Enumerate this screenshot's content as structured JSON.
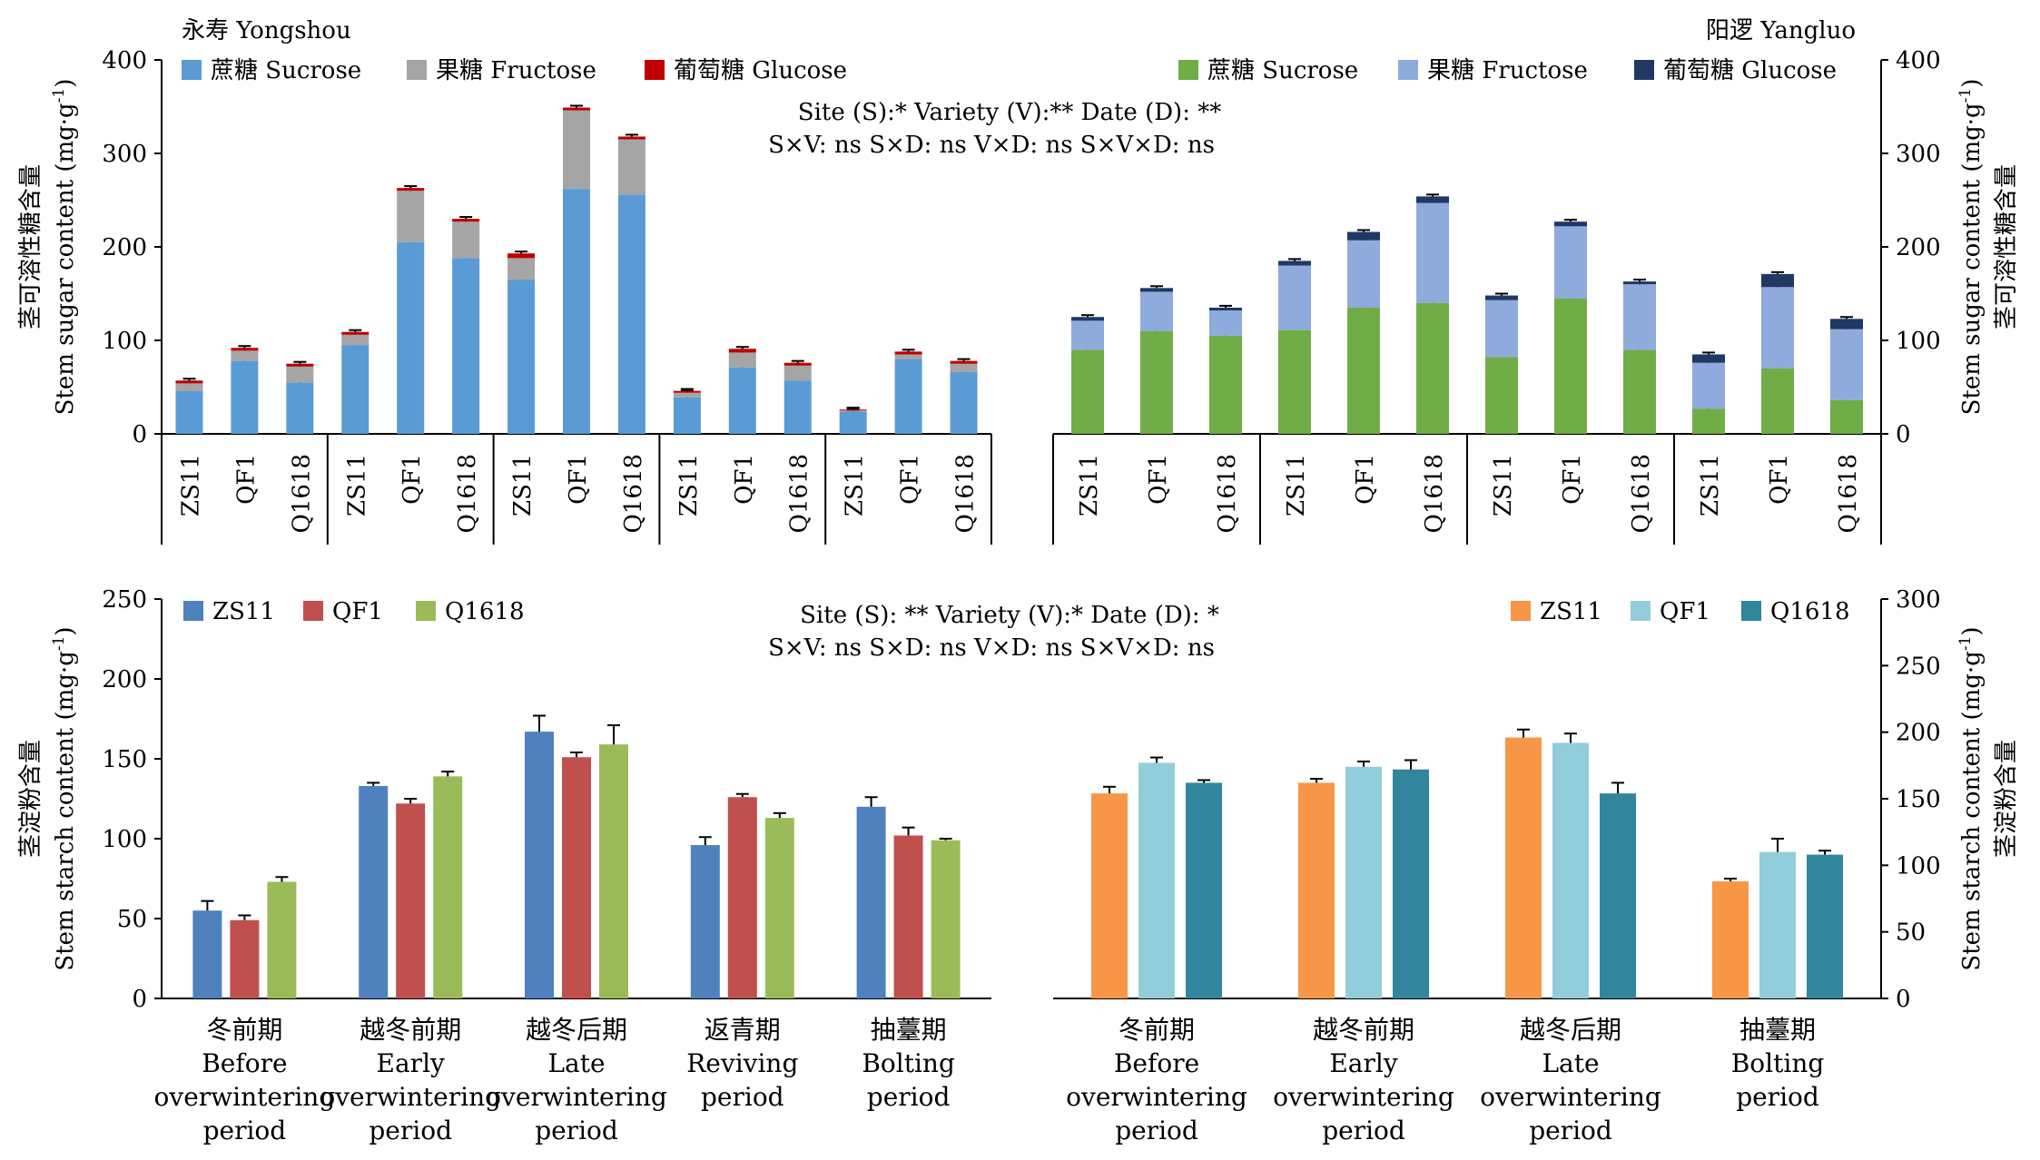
{
  "chart_data": [
    {
      "type": "bar",
      "stacked": true,
      "title": "永寿 Yongshou",
      "ylabel": "茎可溶性糖含量 Stem sugar content (mg·g-1)",
      "ylim": [
        0,
        400
      ],
      "yticks": [
        0,
        100,
        200,
        300,
        400
      ],
      "grid": false,
      "legend": "top-left",
      "legend_entries": [
        "蔗糖 Sucrose",
        "果糖 Fructose",
        "葡萄糖 Glucose"
      ],
      "colors": [
        "#5b9bd5",
        "#a5a5a5",
        "#c00000"
      ],
      "stats_lines": [
        "Site (S):* Variety (V):** Date (D): **",
        "S×V: ns S×D: ns V×D: ns S×V×D: ns"
      ],
      "groups": 5,
      "categories": [
        "ZS11",
        "QF1",
        "Q1618",
        "ZS11",
        "QF1",
        "Q1618",
        "ZS11",
        "QF1",
        "Q1618",
        "ZS11",
        "QF1",
        "Q1618",
        "ZS11",
        "QF1",
        "Q1618"
      ],
      "series": [
        {
          "name": "蔗糖 Sucrose",
          "values": [
            46,
            78,
            55,
            95,
            205,
            188,
            165,
            262,
            256,
            39,
            71,
            57,
            24,
            80,
            66
          ],
          "errors": [
            4,
            6,
            10,
            4,
            10,
            15,
            20,
            8,
            23,
            3,
            10,
            3,
            1,
            3,
            3
          ]
        },
        {
          "name": "果糖 Fructose",
          "values": [
            8,
            11,
            17,
            11,
            55,
            39,
            23,
            84,
            59,
            5,
            16,
            16,
            1,
            5,
            9
          ]
        },
        {
          "name": "葡萄糖 Glucose",
          "values": [
            3,
            3,
            3,
            3,
            3,
            3,
            5,
            3,
            3,
            2,
            4,
            3,
            1,
            3,
            3
          ]
        }
      ]
    },
    {
      "type": "bar",
      "stacked": true,
      "title": "阳逻 Yangluo",
      "ylabel": "茎可溶性糖含量 Stem sugar content (mg·g-1)",
      "ylim": [
        0,
        400
      ],
      "yticks": [
        0,
        100,
        200,
        300,
        400
      ],
      "grid": false,
      "legend": "top-right",
      "legend_entries": [
        "蔗糖 Sucrose",
        "果糖 Fructose",
        "葡萄糖 Glucose"
      ],
      "colors": [
        "#70ad47",
        "#8faadc",
        "#203864"
      ],
      "groups": 4,
      "categories": [
        "ZS11",
        "QF1",
        "Q1618",
        "ZS11",
        "QF1",
        "Q1618",
        "ZS11",
        "QF1",
        "Q1618",
        "ZS11",
        "QF1",
        "Q1618"
      ],
      "series": [
        {
          "name": "蔗糖 Sucrose",
          "values": [
            90,
            110,
            105,
            111,
            135,
            140,
            82,
            145,
            90,
            27,
            70,
            36
          ],
          "errors": [
            5,
            3,
            3,
            3,
            3,
            15,
            10,
            5,
            5,
            3,
            3,
            9
          ]
        },
        {
          "name": "果糖 Fructose",
          "values": [
            31,
            42,
            27,
            69,
            72,
            107,
            61,
            77,
            70,
            49,
            87,
            76
          ]
        },
        {
          "name": "葡萄糖 Glucose",
          "values": [
            4,
            4,
            3,
            5,
            9,
            7,
            5,
            5,
            3,
            9,
            14,
            11
          ]
        }
      ]
    },
    {
      "type": "bar",
      "ylabel": "茎淀粉含量 Stem starch content (mg·g-1)",
      "ylim": [
        0,
        250
      ],
      "yticks": [
        0,
        50,
        100,
        150,
        200,
        250
      ],
      "grid": false,
      "legend": "top-left",
      "stats_lines": [
        "Site (S): ** Variety (V):* Date (D): *",
        "S×V: ns S×D: ns V×D: ns S×V×D: ns"
      ],
      "categories": [
        [
          "冬前期",
          "Before",
          "overwintering",
          "period"
        ],
        [
          "越冬前期",
          "Early",
          "overwintering",
          "period"
        ],
        [
          "越冬后期",
          "Late",
          "overwintering",
          "period"
        ],
        [
          "返青期",
          "Reviving",
          "period"
        ],
        [
          "抽薹期",
          "Bolting",
          "period"
        ]
      ],
      "series": [
        {
          "name": "ZS11",
          "color": "#4f81bd",
          "values": [
            55,
            133,
            167,
            96,
            120
          ],
          "errors": [
            6,
            2,
            10,
            5,
            6
          ]
        },
        {
          "name": "QF1",
          "color": "#c0504d",
          "values": [
            49,
            122,
            151,
            126,
            102
          ],
          "errors": [
            3,
            3,
            3,
            2,
            5
          ]
        },
        {
          "name": "Q1618",
          "color": "#9bbb59",
          "values": [
            73,
            139,
            159,
            113,
            99
          ],
          "errors": [
            3,
            3,
            12,
            3,
            1
          ]
        }
      ]
    },
    {
      "type": "bar",
      "ylabel": "茎淀粉含量 Stem starch content (mg·g-1)",
      "ylim": [
        0,
        300
      ],
      "yticks": [
        0,
        50,
        100,
        150,
        200,
        250,
        300
      ],
      "grid": false,
      "legend": "top-right",
      "categories": [
        [
          "冬前期",
          "Before",
          "overwintering",
          "period"
        ],
        [
          "越冬前期",
          "Early",
          "overwintering",
          "period"
        ],
        [
          "越冬后期",
          "Late",
          "overwintering",
          "period"
        ],
        [
          "抽薹期",
          "Bolting",
          "period"
        ]
      ],
      "series": [
        {
          "name": "ZS11",
          "color": "#f79646",
          "values": [
            154,
            162,
            196,
            88
          ],
          "errors": [
            5,
            3,
            6,
            2
          ]
        },
        {
          "name": "QF1",
          "color": "#92cddc",
          "values": [
            177,
            174,
            192,
            110
          ],
          "errors": [
            4,
            4,
            7,
            10
          ]
        },
        {
          "name": "Q1618",
          "color": "#31859c",
          "values": [
            162,
            172,
            154,
            108
          ],
          "errors": [
            2,
            7,
            8,
            3
          ]
        }
      ]
    }
  ]
}
